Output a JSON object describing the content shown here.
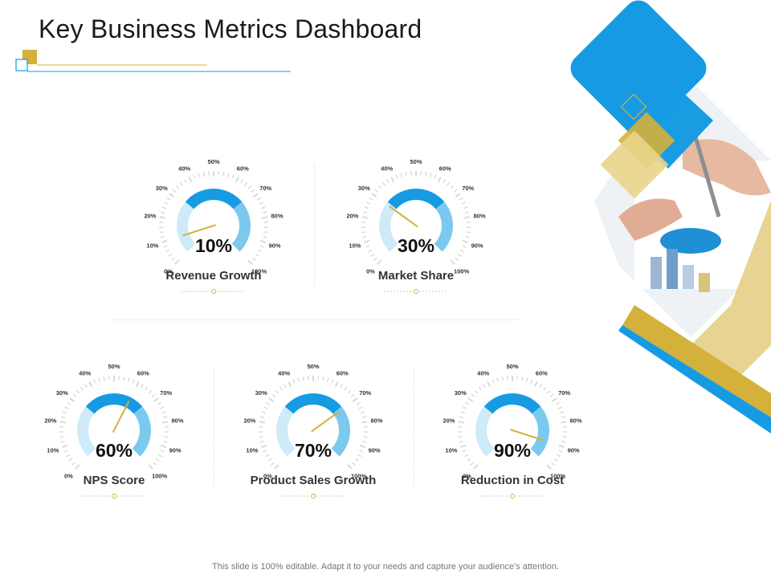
{
  "title": "Key Business Metrics Dashboard",
  "footer": "This slide is 100% editable. Adapt it to your needs and capture your audience's attention.",
  "colors": {
    "blue": "#169be3",
    "mid_blue": "#7cc9f0",
    "light_blue": "#cfeaf9",
    "gold": "#d4b13a",
    "gold_light": "#e8d488",
    "tick": "#d9d9d9"
  },
  "scale_labels": [
    "0%",
    "10%",
    "20%",
    "30%",
    "40%",
    "50%",
    "60%",
    "70%",
    "80%",
    "90%",
    "100%"
  ],
  "gauges": [
    {
      "value": 10,
      "display": "10%",
      "label": "Revenue Growth"
    },
    {
      "value": 30,
      "display": "30%",
      "label": "Market Share"
    },
    {
      "value": 60,
      "display": "60%",
      "label": "NPS Score"
    },
    {
      "value": 70,
      "display": "70%",
      "label": "Product Sales Growth"
    },
    {
      "value": 90,
      "display": "90%",
      "label": "Reduction in Cost"
    }
  ]
}
